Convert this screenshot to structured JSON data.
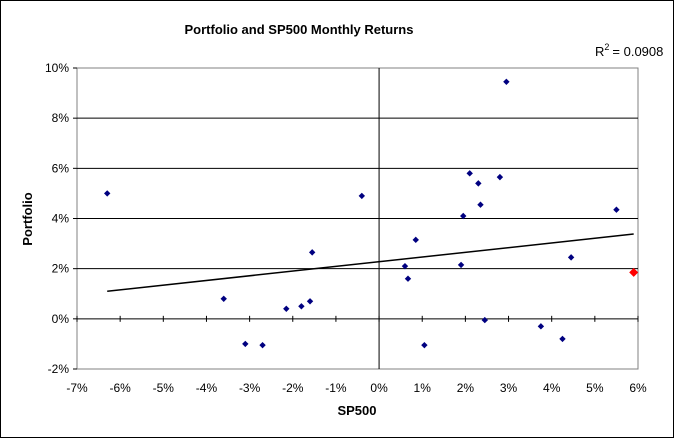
{
  "chart_data": {
    "type": "scatter",
    "title": "Portfolio and SP500 Monthly Returns",
    "xlabel": "SP500",
    "ylabel": "Portfolio",
    "xlim": [
      -7,
      6
    ],
    "ylim": [
      -2,
      10
    ],
    "x_ticks": [
      -7,
      -6,
      -5,
      -4,
      -3,
      -2,
      -1,
      0,
      1,
      2,
      3,
      4,
      5,
      6
    ],
    "y_ticks": [
      -2,
      0,
      2,
      4,
      6,
      8,
      10
    ],
    "tick_suffix": "%",
    "grid": "horizontal",
    "legend": "none",
    "r_squared_label": "R",
    "r_squared_exp": "2",
    "r_squared_value": "= 0.0908",
    "series": [
      {
        "color": "#000080",
        "marker": "diamond",
        "points": [
          [
            -6.3,
            5.0
          ],
          [
            -3.6,
            0.8
          ],
          [
            -3.1,
            -1.0
          ],
          [
            -2.7,
            -1.05
          ],
          [
            -2.15,
            0.4
          ],
          [
            -1.8,
            0.5
          ],
          [
            -1.6,
            0.7
          ],
          [
            -1.55,
            2.65
          ],
          [
            -0.4,
            4.9
          ],
          [
            0.6,
            2.1
          ],
          [
            0.67,
            1.6
          ],
          [
            0.85,
            3.15
          ],
          [
            1.05,
            -1.05
          ],
          [
            1.9,
            2.15
          ],
          [
            1.95,
            4.1
          ],
          [
            2.1,
            5.8
          ],
          [
            2.3,
            5.4
          ],
          [
            2.35,
            4.55
          ],
          [
            2.45,
            -0.05
          ],
          [
            2.8,
            5.65
          ],
          [
            2.95,
            9.45
          ],
          [
            3.75,
            -0.3
          ],
          [
            4.25,
            -0.8
          ],
          [
            4.45,
            2.45
          ],
          [
            5.5,
            4.35
          ]
        ]
      },
      {
        "color": "#ff0000",
        "marker": "diamond",
        "points": [
          [
            5.9,
            1.85
          ]
        ]
      }
    ],
    "trendline": {
      "x": [
        -6.3,
        5.9
      ],
      "y": [
        1.1,
        3.38
      ],
      "color": "#000000"
    }
  }
}
